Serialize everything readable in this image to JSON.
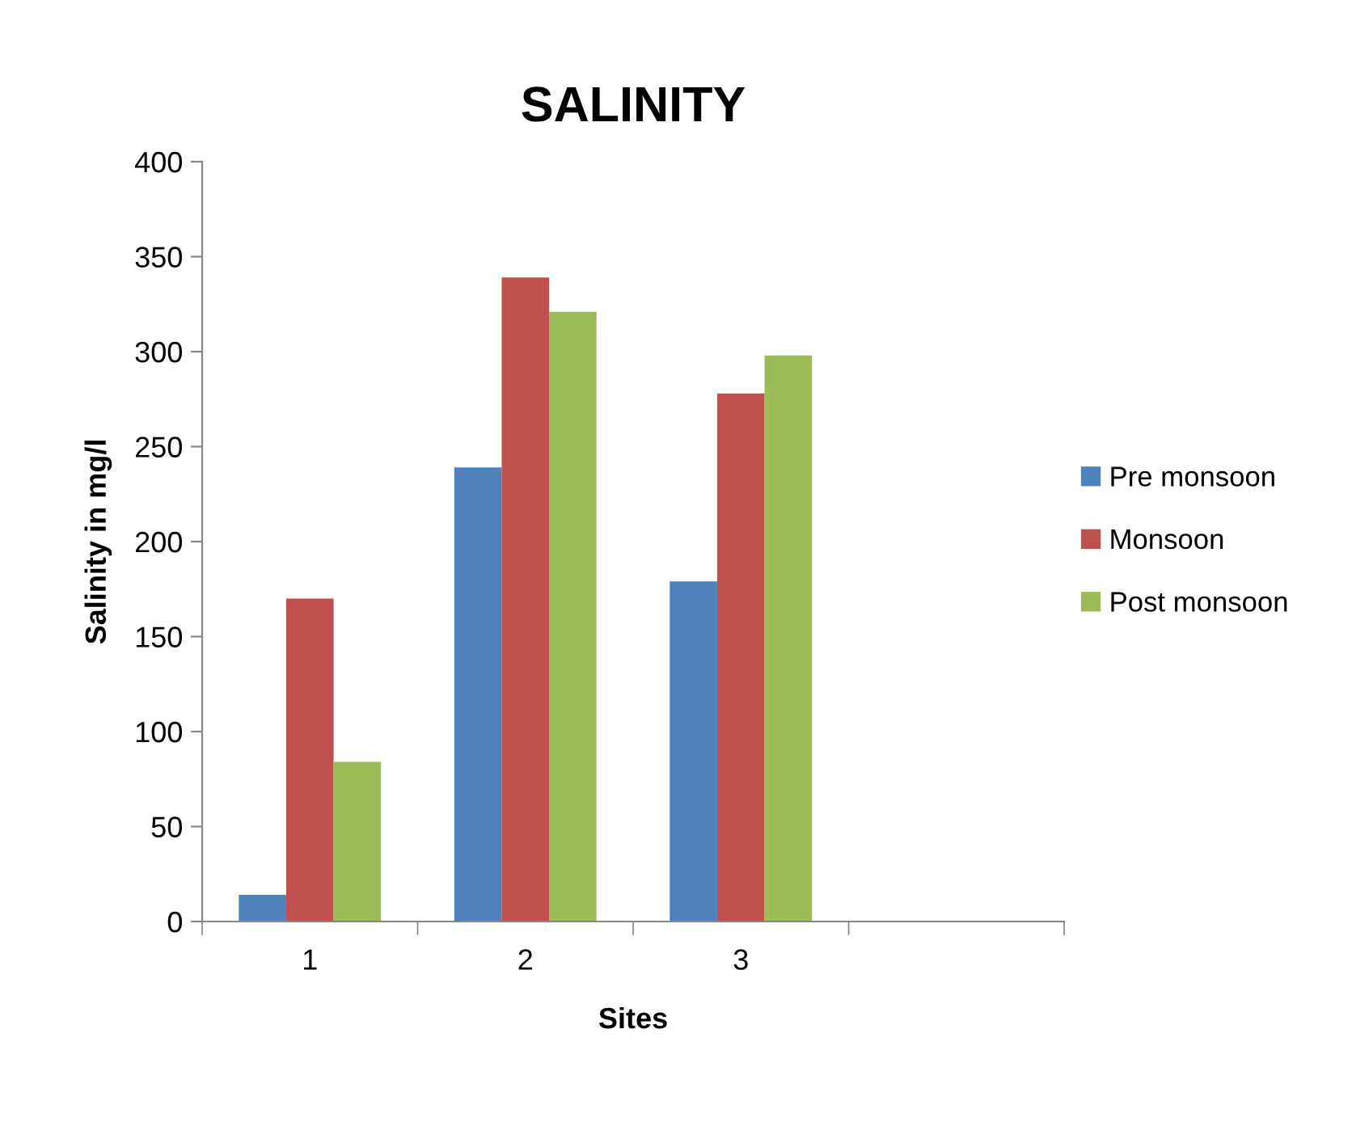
{
  "chart_data": {
    "type": "bar",
    "title": "SALINITY",
    "xlabel": "Sites",
    "ylabel": "Salinity in mg/l",
    "categories": [
      "1",
      "2",
      "3",
      null
    ],
    "series": [
      {
        "name": "Pre monsoon",
        "color": "#4f81bd",
        "values": [
          14,
          239,
          179,
          null
        ]
      },
      {
        "name": "Monsoon",
        "color": "#c0504d",
        "values": [
          170,
          339,
          278,
          null
        ]
      },
      {
        "name": "Post monsoon",
        "color": "#9bbb59",
        "values": [
          84,
          321,
          298,
          null
        ]
      }
    ],
    "ylim": [
      0,
      400
    ],
    "yticks": [
      0,
      50,
      100,
      150,
      200,
      250,
      300,
      350,
      400
    ],
    "grid": false,
    "legend": "right"
  }
}
